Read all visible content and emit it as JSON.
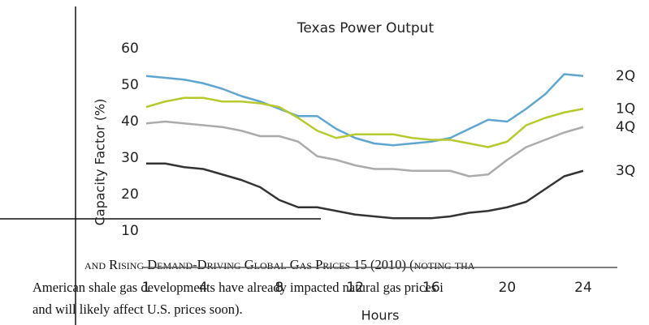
{
  "chart_data": {
    "type": "line",
    "title": "Texas Power Output",
    "x_label": "Hours",
    "y_label": "Capacity Factor (%)",
    "x": [
      1,
      2,
      3,
      4,
      5,
      6,
      7,
      8,
      9,
      10,
      11,
      12,
      13,
      14,
      15,
      16,
      17,
      18,
      19,
      20,
      21,
      22,
      23,
      24
    ],
    "series": [
      {
        "name": "2Q",
        "color": "#5ea6d0",
        "values": [
          52.5,
          52,
          51.5,
          50.5,
          49,
          47,
          45.5,
          43.5,
          41.5,
          41.5,
          38,
          35.5,
          34,
          33.5,
          34,
          34.5,
          35.5,
          38,
          40.5,
          40,
          43.5,
          47.5,
          53,
          52.5
        ]
      },
      {
        "name": "1Q",
        "color": "#b8c92e",
        "values": [
          44,
          45.5,
          46.5,
          46.5,
          45.5,
          45.5,
          45,
          44,
          41,
          37.5,
          35.5,
          36.5,
          36.5,
          36.5,
          35.5,
          35,
          35,
          34,
          33,
          34.5,
          39,
          41,
          42.5,
          43.5
        ]
      },
      {
        "name": "4Q",
        "color": "#ababab",
        "values": [
          39.5,
          40,
          39.5,
          39,
          38.5,
          37.5,
          36,
          36,
          34.5,
          30.5,
          29.5,
          28,
          27,
          27,
          26.5,
          26.5,
          26.5,
          25,
          25.5,
          29.5,
          33,
          35,
          37,
          38.5
        ]
      },
      {
        "name": "3Q",
        "color": "#333333",
        "values": [
          28.5,
          28.5,
          27.5,
          27,
          25.5,
          24,
          22,
          18.5,
          16.5,
          16.5,
          15.5,
          14.5,
          14,
          13.5,
          13.5,
          13.5,
          14,
          15,
          15.5,
          16.5,
          18,
          21.5,
          25,
          26.5
        ]
      }
    ],
    "xlim": [
      1,
      24
    ],
    "xticks": [
      1,
      4,
      8,
      12,
      16,
      20,
      24
    ],
    "ylim": [
      0,
      60
    ],
    "yticks": [
      10,
      20,
      30,
      40,
      50,
      60
    ],
    "grid": false
  },
  "document_text": {
    "lines": [
      "and Rising Demand-Driving Global Gas Prices 15 (2010) (noting tha",
      "American shale gas developments have already impacted natural gas prices i",
      "and will likely affect U.S. prices soon)."
    ]
  }
}
